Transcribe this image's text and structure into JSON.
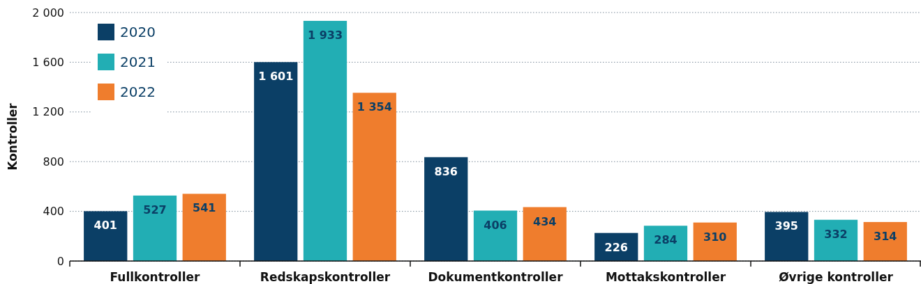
{
  "chart_data": {
    "type": "bar",
    "ylabel": "Kontroller",
    "categories": [
      "Fullkontroller",
      "Redskapskontroller",
      "Dokumentkontroller",
      "Mottakskontroller",
      "Øvrige kontroller"
    ],
    "series": [
      {
        "name": "2020",
        "color": "#0b3f66",
        "values": [
          401,
          1601,
          836,
          226,
          395
        ],
        "value_labels": [
          "401",
          "1 601",
          "836",
          "226",
          "395"
        ]
      },
      {
        "name": "2021",
        "color": "#22aeb4",
        "values": [
          527,
          1933,
          406,
          284,
          332
        ],
        "value_labels": [
          "527",
          "1 933",
          "406",
          "284",
          "332"
        ]
      },
      {
        "name": "2022",
        "color": "#ef7d2d",
        "values": [
          541,
          1354,
          434,
          310,
          314
        ],
        "value_labels": [
          "541",
          "1 354",
          "434",
          "310",
          "314"
        ]
      }
    ],
    "ylim": [
      0,
      2000
    ],
    "yticks": [
      0,
      400,
      800,
      {
        "value": 1200,
        "label": "1 200"
      },
      {
        "value": 1600,
        "label": "1 600"
      },
      {
        "value": 2000,
        "label": "2 000"
      }
    ],
    "grid": "y",
    "legend": "top left"
  }
}
